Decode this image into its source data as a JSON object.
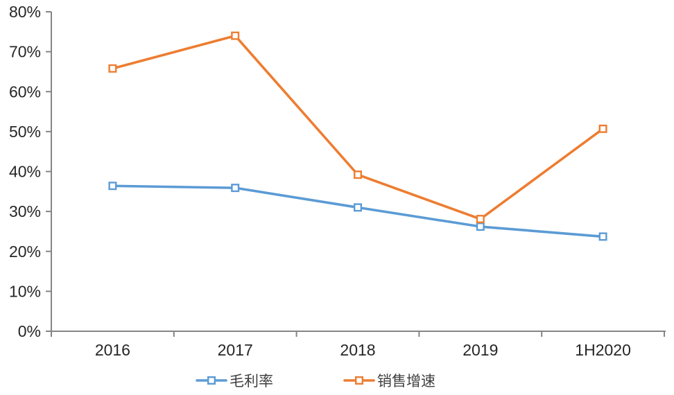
{
  "chart_data": {
    "type": "line",
    "title": "",
    "categories": [
      "2016",
      "2017",
      "2018",
      "2019",
      "1H2020"
    ],
    "series": [
      {
        "name": "毛利率",
        "color": "#5B9BD5",
        "marker": "open-square",
        "values": [
          36.4,
          35.9,
          31.0,
          26.2,
          23.7
        ]
      },
      {
        "name": "销售增速",
        "color": "#ED7D31",
        "marker": "open-square",
        "values": [
          65.8,
          74.0,
          39.2,
          28.1,
          50.7
        ]
      }
    ],
    "xlabel": "",
    "ylabel": "",
    "ylim": [
      0,
      80
    ],
    "ytick_step": 10,
    "ytick_labels": [
      "0%",
      "10%",
      "20%",
      "30%",
      "40%",
      "50%",
      "60%",
      "70%",
      "80%"
    ],
    "grid": false,
    "legend_position": "bottom",
    "axis_color": "#858585",
    "tick_label_color": "#262626",
    "legend_label_color": "#3f3f3f",
    "background": "#FFFFFF"
  }
}
